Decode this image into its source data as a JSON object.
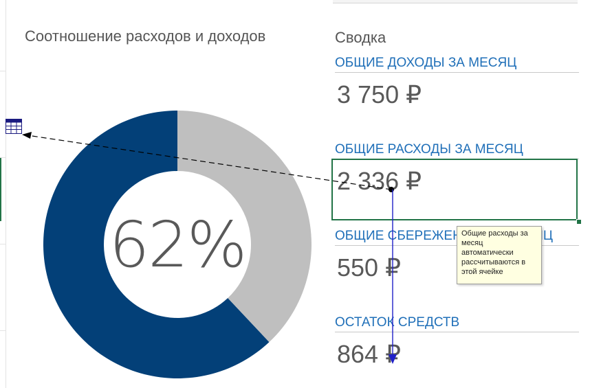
{
  "chart": {
    "title": "Соотношение расходов и доходов",
    "center_label": "62%",
    "colors": {
      "expenses": "#034078",
      "remaining": "#bfbfbf"
    }
  },
  "chart_data": {
    "type": "pie",
    "title": "Соотношение расходов и доходов",
    "values": [
      62,
      38
    ],
    "center_text": "62%"
  },
  "summary": {
    "title": "Сводка",
    "income": {
      "label": "ОБЩИЕ ДОХОДЫ ЗА МЕСЯЦ",
      "value": "3 750 ₽"
    },
    "expenses": {
      "label": "ОБЩИЕ РАСХОДЫ ЗА МЕСЯЦ",
      "value": "2 336 ₽"
    },
    "savings": {
      "label": "ОБЩИЕ СБЕРЕЖЕНИЯ ЗА МЕСЯЦ",
      "value": "550 ₽"
    },
    "balance": {
      "label": "ОСТАТОК СРЕДСТВ",
      "value": "864 ₽"
    }
  },
  "comment": {
    "text": "Общие расходы за месяц автоматически рассчитываются в этой ячейке"
  },
  "icons": {
    "precedent_table": "table-icon"
  }
}
